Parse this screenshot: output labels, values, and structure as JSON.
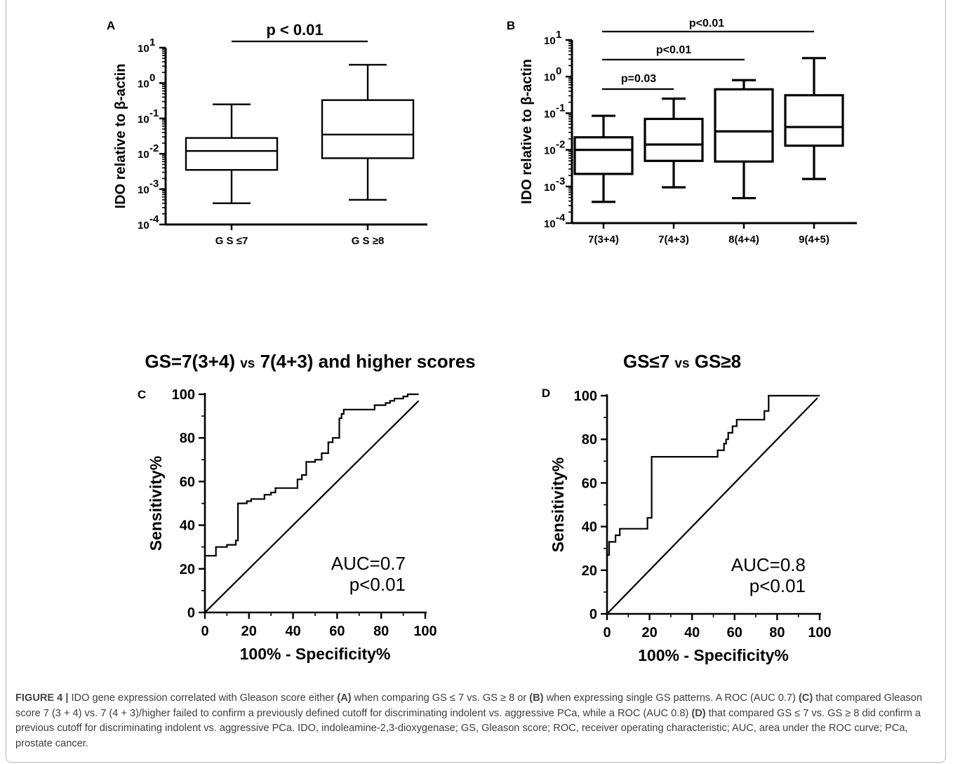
{
  "caption": {
    "label": "FIGURE 4 |",
    "segments": [
      {
        "text": " IDO gene expression correlated with Gleason score either ",
        "bold": false
      },
      {
        "text": "(A)",
        "bold": true
      },
      {
        "text": " when comparing GS ≤ 7 vs. GS ≥ 8 or ",
        "bold": false
      },
      {
        "text": "(B)",
        "bold": true
      },
      {
        "text": " when expressing single GS patterns. A ROC (AUC 0.7) ",
        "bold": false
      },
      {
        "text": "(C)",
        "bold": true
      },
      {
        "text": " that compared Gleason score 7 (3 + 4) vs. 7 (4 + 3)/higher failed to confirm a previously defined cutoff for discriminating indolent vs. aggressive PCa, while a ROC (AUC 0.8) ",
        "bold": false
      },
      {
        "text": "(D)",
        "bold": true
      },
      {
        "text": " that compared GS ≤ 7 vs. GS ≥ 8 did confirm a previous cutoff for discriminating indolent vs. aggressive PCa. IDO, indoleamine-2,3-dioxygenase; GS, Gleason score; ROC, receiver operating characteristic; AUC, area under the ROC curve; PCa, prostate cancer.",
        "bold": false
      }
    ]
  },
  "chart_data": [
    {
      "panel": "A",
      "type": "boxplot",
      "ylabel": "IDO relative to β-actin",
      "yscale": "log",
      "ylim": [
        0.0001,
        10
      ],
      "yticks": [
        {
          "base": "10",
          "exp": "1"
        },
        {
          "base": "10",
          "exp": "0"
        },
        {
          "base": "10",
          "exp": "-1"
        },
        {
          "base": "10",
          "exp": "-2"
        },
        {
          "base": "10",
          "exp": "-3"
        },
        {
          "base": "10",
          "exp": "-4"
        }
      ],
      "categories": [
        "G S ≤7",
        "G S ≥8"
      ],
      "boxes": [
        {
          "min": 0.0004,
          "q1": 0.0035,
          "median": 0.012,
          "q3": 0.028,
          "max": 0.25
        },
        {
          "min": 0.0005,
          "q1": 0.0075,
          "median": 0.035,
          "q3": 0.33,
          "max": 3.3
        }
      ],
      "brackets": [
        {
          "from": 0,
          "to": 1,
          "label": "p < 0.01"
        }
      ]
    },
    {
      "panel": "B",
      "type": "boxplot",
      "ylabel": "IDO relative to β-actin",
      "yscale": "log",
      "ylim": [
        0.0001,
        10
      ],
      "yticks": [
        {
          "base": "10",
          "exp": "1"
        },
        {
          "base": "10",
          "exp": "0"
        },
        {
          "base": "10",
          "exp": "-1"
        },
        {
          "base": "10",
          "exp": "-2"
        },
        {
          "base": "10",
          "exp": "-3"
        },
        {
          "base": "10",
          "exp": "-4"
        }
      ],
      "categories": [
        "7(3+4)",
        "7(4+3)",
        "8(4+4)",
        "9(4+5)"
      ],
      "boxes": [
        {
          "min": 0.00038,
          "q1": 0.0022,
          "median": 0.01,
          "q3": 0.022,
          "max": 0.085
        },
        {
          "min": 0.00095,
          "q1": 0.005,
          "median": 0.014,
          "q3": 0.07,
          "max": 0.25
        },
        {
          "min": 0.00048,
          "q1": 0.0048,
          "median": 0.032,
          "q3": 0.45,
          "max": 0.8
        },
        {
          "min": 0.0016,
          "q1": 0.013,
          "median": 0.042,
          "q3": 0.31,
          "max": 3.2
        }
      ],
      "brackets": [
        {
          "from": 0,
          "to": 1,
          "label": "p=0.03"
        },
        {
          "from": 0,
          "to": 2,
          "label": "p<0.01"
        },
        {
          "from": 0,
          "to": 3,
          "label": "p<0.01"
        }
      ]
    },
    {
      "panel": "C",
      "type": "line",
      "title": "GS=7(3+4) vs 7(4+3) and higher scores",
      "title_parts": [
        {
          "text": "GS=7(3+4) ",
          "small": false
        },
        {
          "text": "vs",
          "small": true
        },
        {
          "text": " 7(4+3) and higher scores",
          "small": false
        }
      ],
      "xlabel": "100% - Specificity%",
      "ylabel": "Sensitivity%",
      "xlim": [
        0,
        100
      ],
      "ylim": [
        0,
        100
      ],
      "xticks": [
        "0",
        "20",
        "40",
        "60",
        "80",
        "100"
      ],
      "yticks": [
        "0",
        "20",
        "40",
        "60",
        "80",
        "100"
      ],
      "annotation": [
        "AUC=0.7",
        "p<0.01"
      ],
      "reference_line": [
        [
          0,
          0
        ],
        [
          97,
          97
        ]
      ],
      "roc_curve": [
        [
          0,
          26
        ],
        [
          5,
          26
        ],
        [
          5,
          30
        ],
        [
          10,
          30
        ],
        [
          10,
          31
        ],
        [
          14,
          31
        ],
        [
          14,
          33
        ],
        [
          15,
          33
        ],
        [
          15,
          50
        ],
        [
          19,
          50
        ],
        [
          19,
          51
        ],
        [
          21,
          51
        ],
        [
          21,
          52
        ],
        [
          27,
          52
        ],
        [
          27,
          54
        ],
        [
          30,
          54
        ],
        [
          30,
          55
        ],
        [
          32,
          55
        ],
        [
          32,
          57
        ],
        [
          42,
          57
        ],
        [
          42,
          61
        ],
        [
          44,
          61
        ],
        [
          44,
          63
        ],
        [
          46,
          63
        ],
        [
          46,
          69
        ],
        [
          50,
          69
        ],
        [
          50,
          70
        ],
        [
          53,
          70
        ],
        [
          53,
          73
        ],
        [
          56,
          73
        ],
        [
          56,
          78
        ],
        [
          58,
          78
        ],
        [
          58,
          80
        ],
        [
          61,
          80
        ],
        [
          61,
          89
        ],
        [
          62,
          89
        ],
        [
          62,
          91
        ],
        [
          63,
          91
        ],
        [
          63,
          93
        ],
        [
          77,
          93
        ],
        [
          77,
          95
        ],
        [
          82,
          95
        ],
        [
          82,
          96
        ],
        [
          84,
          96
        ],
        [
          84,
          97
        ],
        [
          86,
          97
        ],
        [
          86,
          98
        ],
        [
          90,
          98
        ],
        [
          90,
          99
        ],
        [
          92,
          99
        ],
        [
          92,
          100
        ],
        [
          97,
          100
        ]
      ]
    },
    {
      "panel": "D",
      "type": "line",
      "title": "GS≤7 vs GS≥8",
      "title_parts": [
        {
          "text": "GS≤7 ",
          "small": false
        },
        {
          "text": "vs",
          "small": true
        },
        {
          "text": " GS≥8",
          "small": false
        }
      ],
      "xlabel": "100% - Specificity%",
      "ylabel": "Sensitivity%",
      "xlim": [
        0,
        100
      ],
      "ylim": [
        0,
        100
      ],
      "xticks": [
        "0",
        "20",
        "40",
        "60",
        "80",
        "100"
      ],
      "yticks": [
        "0",
        "20",
        "40",
        "60",
        "80",
        "100"
      ],
      "annotation": [
        "AUC=0.8",
        "p<0.01"
      ],
      "reference_line": [
        [
          0,
          0
        ],
        [
          99,
          99
        ]
      ],
      "roc_curve": [
        [
          0,
          27
        ],
        [
          1,
          27
        ],
        [
          1,
          33
        ],
        [
          4,
          33
        ],
        [
          4,
          36
        ],
        [
          6,
          36
        ],
        [
          6,
          39
        ],
        [
          19,
          39
        ],
        [
          19,
          44
        ],
        [
          21,
          44
        ],
        [
          21,
          72
        ],
        [
          52,
          72
        ],
        [
          52,
          75
        ],
        [
          55,
          75
        ],
        [
          55,
          78
        ],
        [
          56,
          78
        ],
        [
          56,
          80
        ],
        [
          57,
          80
        ],
        [
          57,
          83
        ],
        [
          59,
          83
        ],
        [
          59,
          86
        ],
        [
          61,
          86
        ],
        [
          61,
          89
        ],
        [
          74,
          89
        ],
        [
          74,
          93
        ],
        [
          76,
          93
        ],
        [
          76,
          100
        ],
        [
          100,
          100
        ]
      ]
    }
  ]
}
